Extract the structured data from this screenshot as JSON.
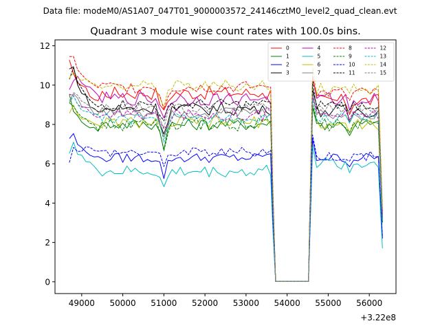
{
  "chart_data": {
    "type": "line",
    "suptitle": "Data file: modeM0/AS1A07_047T01_9000003572_24146cztM0_level2_quad_clean.evt",
    "title": "Quadrant 3 module wise count rates with 100.0s bins.",
    "xlabel": "",
    "ylabel": "",
    "x_offset_label": "+3.22e8",
    "xlim": [
      48350,
      56650
    ],
    "ylim": [
      -0.6,
      12.3
    ],
    "x_ticks": [
      49000,
      50000,
      51000,
      52000,
      53000,
      54000,
      55000,
      56000
    ],
    "x_tick_labels": [
      "49000",
      "50000",
      "51000",
      "52000",
      "53000",
      "54000",
      "55000",
      "56000"
    ],
    "y_ticks": [
      0,
      2,
      4,
      6,
      8,
      10,
      12
    ],
    "y_tick_labels": [
      "0",
      "2",
      "4",
      "6",
      "8",
      "10",
      "12"
    ],
    "legend": {
      "placement": "top-right",
      "columns": 4
    },
    "x_segments": [
      {
        "start": 48700,
        "end": 53620,
        "step": 100
      },
      {
        "start": 53720,
        "end": 54520,
        "step": 100
      },
      {
        "start": 54620,
        "end": 56320,
        "step": 100
      }
    ],
    "gap_level": 0.02,
    "series": [
      {
        "name": "0",
        "color": "#ff0000",
        "dash": "solid",
        "first": [
          11.2,
          10.5,
          10.2,
          10.0,
          9.8,
          9.5,
          9.3,
          9.2
        ],
        "level": 9.6,
        "amp": 0.35,
        "dip51k": 1.1,
        "seg3": 9.2,
        "end": 3.5
      },
      {
        "name": "1",
        "color": "#008000",
        "dash": "solid",
        "first": [
          9.6,
          8.6,
          8.4,
          8.2,
          8.0,
          7.9,
          7.8,
          7.7
        ],
        "level": 8.0,
        "amp": 0.3,
        "dip51k": 1.0,
        "seg3": 8.0,
        "end": 3.0
      },
      {
        "name": "2",
        "color": "#0000ff",
        "dash": "solid",
        "first": [
          7.3,
          7.5,
          7.0,
          6.8,
          6.6,
          6.5,
          6.4,
          6.3
        ],
        "level": 6.3,
        "amp": 0.25,
        "dip51k": 0.9,
        "seg3": 6.3,
        "end": 2.2
      },
      {
        "name": "3",
        "color": "#000000",
        "dash": "solid",
        "first": [
          10.8,
          10.9,
          10.1,
          9.6,
          9.4,
          9.0,
          8.8,
          8.6
        ],
        "level": 8.8,
        "amp": 0.35,
        "dip51k": 1.2,
        "seg3": 8.7,
        "end": 3.3
      },
      {
        "name": "4",
        "color": "#bf00bf",
        "dash": "solid",
        "first": [
          9.7,
          10.2,
          10.4,
          10.2,
          10.0,
          9.8,
          9.6,
          9.5
        ],
        "level": 9.3,
        "amp": 0.35,
        "dip51k": 1.0,
        "seg3": 9.3,
        "end": 3.4
      },
      {
        "name": "5",
        "color": "#00bfbf",
        "dash": "solid",
        "first": [
          6.6,
          7.1,
          6.5,
          6.4,
          6.1,
          6.0,
          5.9,
          5.7
        ],
        "level": 5.6,
        "amp": 0.3,
        "dip51k": 0.9,
        "seg3": 6.0,
        "end": 1.7
      },
      {
        "name": "6",
        "color": "#bfbf00",
        "dash": "solid",
        "first": [
          8.6,
          9.0,
          8.6,
          8.3,
          8.2,
          8.1,
          8.0,
          7.9
        ],
        "level": 8.1,
        "amp": 0.3,
        "dip51k": 1.0,
        "seg3": 8.0,
        "end": 3.0
      },
      {
        "name": "7",
        "color": "#808080",
        "dash": "solid",
        "first": [
          9.2,
          9.6,
          9.3,
          9.0,
          8.9,
          8.8,
          8.6,
          8.5
        ],
        "level": 8.6,
        "amp": 0.3,
        "dip51k": 1.0,
        "seg3": 8.5,
        "end": 3.2
      },
      {
        "name": "8",
        "color": "#ff0000",
        "dash": "dashed",
        "first": [
          11.4,
          11.5,
          10.8,
          10.5,
          10.3,
          10.1,
          10.0,
          9.9
        ],
        "level": 9.9,
        "amp": 0.3,
        "dip51k": 1.0,
        "seg3": 9.6,
        "end": 3.6
      },
      {
        "name": "9",
        "color": "#008000",
        "dash": "dashed",
        "first": [
          9.2,
          9.0,
          8.7,
          8.4,
          8.2,
          8.0,
          7.9,
          7.8
        ],
        "level": 8.0,
        "amp": 0.35,
        "dip51k": 1.3,
        "seg3": 8.0,
        "end": 3.0
      },
      {
        "name": "10",
        "color": "#0000ff",
        "dash": "dashed",
        "first": [
          6.1,
          6.9,
          6.6,
          6.7,
          6.9,
          6.8,
          6.7,
          6.6
        ],
        "level": 6.6,
        "amp": 0.25,
        "dip51k": 0.8,
        "seg3": 6.4,
        "end": 2.3
      },
      {
        "name": "11",
        "color": "#000000",
        "dash": "dashed",
        "first": [
          10.3,
          10.8,
          10.2,
          9.8,
          9.5,
          9.2,
          9.0,
          8.9
        ],
        "level": 9.0,
        "amp": 0.3,
        "dip51k": 1.0,
        "seg3": 9.0,
        "end": 3.4
      },
      {
        "name": "12",
        "color": "#bf00bf",
        "dash": "dashed",
        "first": [
          9.5,
          9.4,
          9.1,
          8.9,
          8.8,
          8.6,
          8.5,
          8.4
        ],
        "level": 8.5,
        "amp": 0.3,
        "dip51k": 1.0,
        "seg3": 8.5,
        "end": 3.2
      },
      {
        "name": "13",
        "color": "#00bfbf",
        "dash": "dashed",
        "first": [
          9.0,
          9.4,
          9.0,
          8.8,
          8.7,
          8.6,
          8.5,
          8.4
        ],
        "level": 8.3,
        "amp": 0.3,
        "dip51k": 1.0,
        "seg3": 8.3,
        "end": 3.1
      },
      {
        "name": "14",
        "color": "#bfbf00",
        "dash": "dashed",
        "first": [
          10.4,
          10.6,
          10.4,
          10.2,
          10.3,
          10.1,
          10.0,
          9.9
        ],
        "level": 10.0,
        "amp": 0.3,
        "dip51k": 1.0,
        "seg3": 9.8,
        "end": 3.7
      },
      {
        "name": "15",
        "color": "#808080",
        "dash": "dashed",
        "first": [
          9.1,
          9.6,
          9.4,
          9.2,
          9.0,
          8.9,
          8.8,
          8.7
        ],
        "level": 8.8,
        "amp": 0.3,
        "dip51k": 1.0,
        "seg3": 8.8,
        "end": 3.3
      }
    ]
  }
}
